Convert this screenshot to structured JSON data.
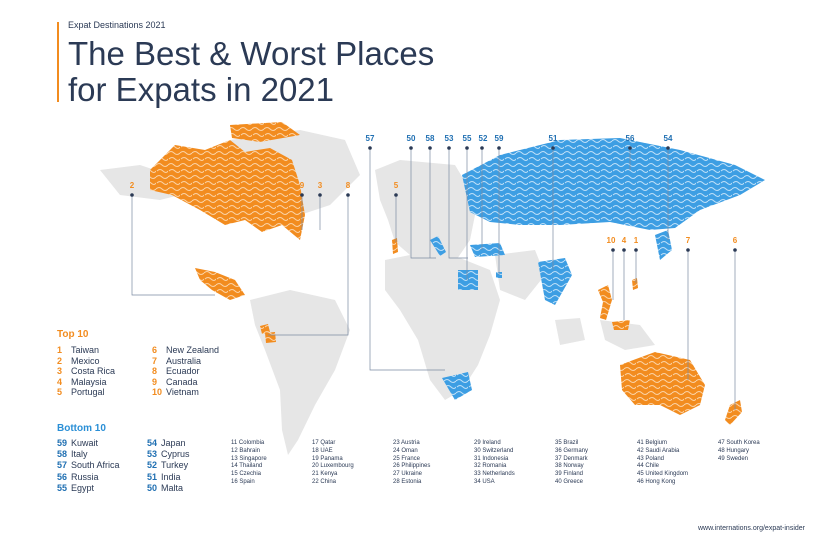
{
  "header": {
    "kicker": "Expat Destinations 2021",
    "title_line1": "The Best & Worst Places",
    "title_line2": "for Expats in 2021"
  },
  "colors": {
    "top_accent": "#f28c1f",
    "bottom_accent": "#4aa3e3",
    "land": "#e6e6e6",
    "text": "#2b3a55"
  },
  "top10": {
    "heading": "Top 10",
    "col1": [
      {
        "rank": "1",
        "name": "Taiwan"
      },
      {
        "rank": "2",
        "name": "Mexico"
      },
      {
        "rank": "3",
        "name": "Costa Rica"
      },
      {
        "rank": "4",
        "name": "Malaysia"
      },
      {
        "rank": "5",
        "name": "Portugal"
      }
    ],
    "col2": [
      {
        "rank": "6",
        "name": "New Zealand"
      },
      {
        "rank": "7",
        "name": "Australia"
      },
      {
        "rank": "8",
        "name": "Ecuador"
      },
      {
        "rank": "9",
        "name": "Canada"
      },
      {
        "rank": "10",
        "name": "Vietnam"
      }
    ]
  },
  "bottom10": {
    "heading": "Bottom 10",
    "col1": [
      {
        "rank": "59",
        "name": "Kuwait"
      },
      {
        "rank": "58",
        "name": "Italy"
      },
      {
        "rank": "57",
        "name": "South Africa"
      },
      {
        "rank": "56",
        "name": "Russia"
      },
      {
        "rank": "55",
        "name": "Egypt"
      }
    ],
    "col2": [
      {
        "rank": "54",
        "name": "Japan"
      },
      {
        "rank": "53",
        "name": "Cyprus"
      },
      {
        "rank": "52",
        "name": "Turkey"
      },
      {
        "rank": "51",
        "name": "India"
      },
      {
        "rank": "50",
        "name": "Malta"
      }
    ]
  },
  "middle_ranks": [
    [
      "11 Colombia",
      "12 Bahrain",
      "13 Singapore",
      "14 Thailand",
      "15 Czechia",
      "16 Spain"
    ],
    [
      "17 Qatar",
      "18 UAE",
      "19 Panama",
      "20 Luxembourg",
      "21 Kenya",
      "22 China"
    ],
    [
      "23 Austria",
      "24 Oman",
      "25 France",
      "26 Philippines",
      "27 Ukraine",
      "28 Estonia"
    ],
    [
      "29 Ireland",
      "30 Switzerland",
      "31 Indonesia",
      "32 Romania",
      "33 Netherlands",
      "34 USA"
    ],
    [
      "35 Brazil",
      "36 Germany",
      "37 Denmark",
      "38 Norway",
      "39 Finland",
      "40 Greece"
    ],
    [
      "41 Belgium",
      "42 Saudi Arabia",
      "43 Poland",
      "44 Chile",
      "45 United Kingdom",
      "46 Hong Kong"
    ],
    [
      "47 South Korea",
      "48 Hungary",
      "49 Sweden"
    ]
  ],
  "map_labels": {
    "top": [
      "2",
      "9",
      "3",
      "8",
      "5",
      "10",
      "4",
      "1",
      "7",
      "6"
    ],
    "bottom": [
      "57",
      "50",
      "58",
      "53",
      "55",
      "52",
      "59",
      "51",
      "56",
      "54"
    ]
  },
  "footer": {
    "source": "www.internations.org/expat-insider"
  }
}
